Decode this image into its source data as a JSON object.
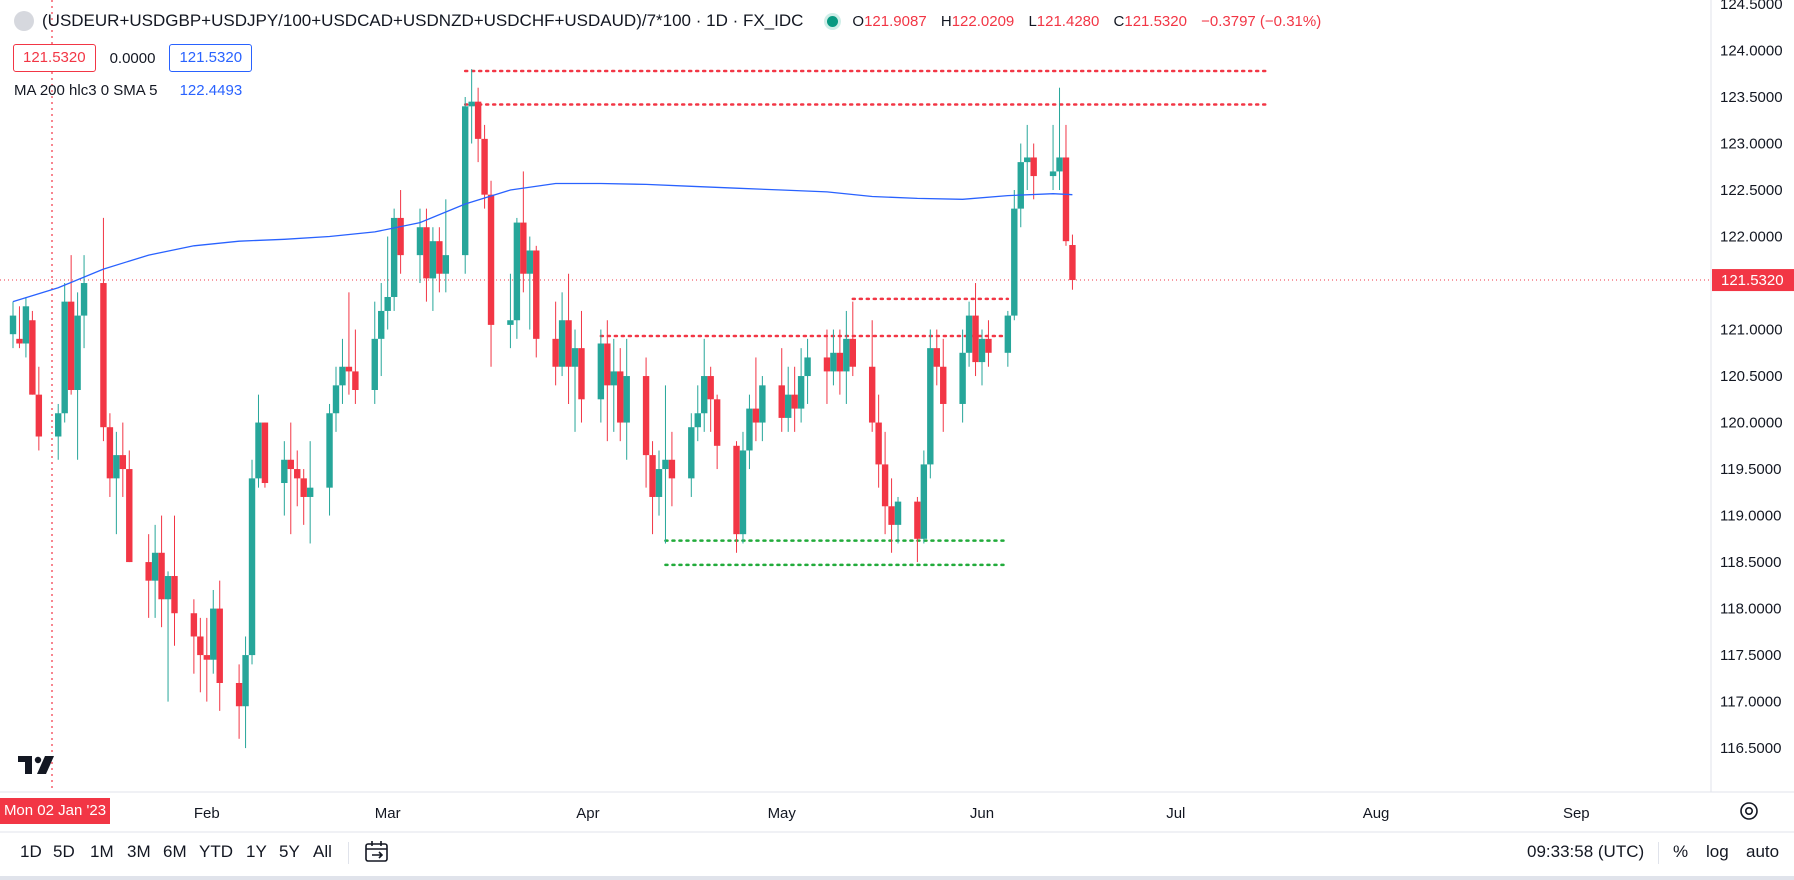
{
  "header": {
    "symbol_title": "(USDEUR+USDGBP+USDJPY/100+USDCAD+USDNZD+USDCHF+USDAUD)/7*100 · 1D · FX_IDC",
    "ohlc": {
      "o_label": "O",
      "o_value": "121.9087",
      "h_label": "H",
      "h_value": "122.0209",
      "l_label": "L",
      "l_value": "121.4280",
      "c_label": "C",
      "c_value": "121.5320",
      "change": "−0.3797 (−0.31%)"
    },
    "sell_price": "121.5320",
    "spread": "0.0000",
    "buy_price": "121.5320",
    "indicator_label": "MA 200 hlc3 0 SMA 5",
    "indicator_value": "122.4493"
  },
  "colors": {
    "up": "#26a69a",
    "down": "#f23645",
    "ma_line": "#2962ff",
    "support_lines": "#22ab3b",
    "resistance_lines": "#f23645"
  },
  "icons": [
    "symbol-logo-icon",
    "market-status-icon",
    "tradingview-logo-icon",
    "settings-icon",
    "date-range-icon"
  ],
  "time_axis": {
    "cursor_label": "Mon 02 Jan '23",
    "months": [
      "Feb",
      "Mar",
      "Apr",
      "May",
      "Jun",
      "Jul",
      "Aug",
      "Sep"
    ]
  },
  "price_axis": {
    "ticks": [
      "124.5000",
      "124.0000",
      "123.5000",
      "123.0000",
      "122.5000",
      "122.0000",
      "121.5000",
      "121.0000",
      "120.5000",
      "120.0000",
      "119.5000",
      "119.0000",
      "118.5000",
      "118.0000",
      "117.5000",
      "117.0000",
      "116.5000"
    ],
    "last_price_label": "121.5320"
  },
  "toolbar": {
    "timeframes": [
      "1D",
      "5D",
      "1M",
      "3M",
      "6M",
      "YTD",
      "1Y",
      "5Y",
      "All"
    ],
    "clock": "09:33:58 (UTC)",
    "options": [
      "%",
      "log",
      "auto"
    ]
  },
  "chart_data": {
    "type": "candlestick",
    "interval": "1D",
    "x_range": [
      "2023-01-02",
      "2023-09-15"
    ],
    "ylim": [
      116.2,
      124.5
    ],
    "grid": false,
    "last_price": 121.532,
    "candles": [
      {
        "d": "2023-01-02",
        "o": 120.95,
        "h": 121.3,
        "l": 120.8,
        "c": 121.15
      },
      {
        "d": "2023-01-03",
        "o": 120.9,
        "h": 121.25,
        "l": 120.8,
        "c": 120.85
      },
      {
        "d": "2023-01-04",
        "o": 120.85,
        "h": 121.35,
        "l": 120.7,
        "c": 121.25
      },
      {
        "d": "2023-01-05",
        "o": 121.1,
        "h": 121.2,
        "l": 120.3,
        "c": 120.3
      },
      {
        "d": "2023-01-06",
        "o": 120.3,
        "h": 120.6,
        "l": 119.7,
        "c": 119.85
      },
      {
        "d": "2023-01-09",
        "o": 119.85,
        "h": 120.2,
        "l": 119.6,
        "c": 120.1
      },
      {
        "d": "2023-01-10",
        "o": 120.1,
        "h": 121.5,
        "l": 120.0,
        "c": 121.3
      },
      {
        "d": "2023-01-11",
        "o": 121.3,
        "h": 121.8,
        "l": 120.3,
        "c": 120.35
      },
      {
        "d": "2023-01-12",
        "o": 120.35,
        "h": 121.4,
        "l": 119.6,
        "c": 121.15
      },
      {
        "d": "2023-01-13",
        "o": 121.15,
        "h": 121.8,
        "l": 120.8,
        "c": 121.5
      },
      {
        "d": "2023-01-16",
        "o": 121.5,
        "h": 122.2,
        "l": 119.8,
        "c": 119.95
      },
      {
        "d": "2023-01-17",
        "o": 119.95,
        "h": 120.1,
        "l": 119.2,
        "c": 119.4
      },
      {
        "d": "2023-01-18",
        "o": 119.4,
        "h": 119.9,
        "l": 118.8,
        "c": 119.65
      },
      {
        "d": "2023-01-19",
        "o": 119.65,
        "h": 120.0,
        "l": 119.2,
        "c": 119.5
      },
      {
        "d": "2023-01-20",
        "o": 119.5,
        "h": 119.7,
        "l": 118.5,
        "c": 118.5
      },
      {
        "d": "2023-01-23",
        "o": 118.5,
        "h": 118.8,
        "l": 117.9,
        "c": 118.3
      },
      {
        "d": "2023-01-24",
        "o": 118.3,
        "h": 118.9,
        "l": 117.9,
        "c": 118.6
      },
      {
        "d": "2023-01-25",
        "o": 118.6,
        "h": 119.0,
        "l": 117.8,
        "c": 118.1
      },
      {
        "d": "2023-01-26",
        "o": 118.1,
        "h": 118.4,
        "l": 117.0,
        "c": 118.35
      },
      {
        "d": "2023-01-27",
        "o": 118.35,
        "h": 119.0,
        "l": 117.6,
        "c": 117.95
      },
      {
        "d": "2023-01-30",
        "o": 117.95,
        "h": 118.1,
        "l": 117.3,
        "c": 117.7
      },
      {
        "d": "2023-01-31",
        "o": 117.7,
        "h": 117.9,
        "l": 117.1,
        "c": 117.5
      },
      {
        "d": "2023-02-01",
        "o": 117.5,
        "h": 117.9,
        "l": 117.0,
        "c": 117.45
      },
      {
        "d": "2023-02-02",
        "o": 117.45,
        "h": 118.2,
        "l": 117.3,
        "c": 118.0
      },
      {
        "d": "2023-02-03",
        "o": 118.0,
        "h": 118.3,
        "l": 116.9,
        "c": 117.2
      },
      {
        "d": "2023-02-06",
        "o": 117.2,
        "h": 117.4,
        "l": 116.6,
        "c": 116.95
      },
      {
        "d": "2023-02-07",
        "o": 116.95,
        "h": 117.7,
        "l": 116.5,
        "c": 117.5
      },
      {
        "d": "2023-02-08",
        "o": 117.5,
        "h": 119.6,
        "l": 117.4,
        "c": 119.4
      },
      {
        "d": "2023-02-09",
        "o": 119.4,
        "h": 120.3,
        "l": 119.3,
        "c": 120.0
      },
      {
        "d": "2023-02-10",
        "o": 120.0,
        "h": 120.0,
        "l": 119.3,
        "c": 119.35
      },
      {
        "d": "2023-02-13",
        "o": 119.35,
        "h": 119.8,
        "l": 119.0,
        "c": 119.6
      },
      {
        "d": "2023-02-14",
        "o": 119.6,
        "h": 120.0,
        "l": 118.8,
        "c": 119.5
      },
      {
        "d": "2023-02-15",
        "o": 119.5,
        "h": 119.7,
        "l": 119.1,
        "c": 119.4
      },
      {
        "d": "2023-02-16",
        "o": 119.4,
        "h": 119.5,
        "l": 118.9,
        "c": 119.2
      },
      {
        "d": "2023-02-17",
        "o": 119.2,
        "h": 119.8,
        "l": 118.7,
        "c": 119.3
      },
      {
        "d": "2023-02-20",
        "o": 119.3,
        "h": 120.2,
        "l": 119.0,
        "c": 120.1
      },
      {
        "d": "2023-02-21",
        "o": 120.1,
        "h": 120.6,
        "l": 119.9,
        "c": 120.4
      },
      {
        "d": "2023-02-22",
        "o": 120.4,
        "h": 120.9,
        "l": 120.2,
        "c": 120.6
      },
      {
        "d": "2023-02-23",
        "o": 120.6,
        "h": 121.4,
        "l": 120.3,
        "c": 120.55
      },
      {
        "d": "2023-02-24",
        "o": 120.55,
        "h": 121.0,
        "l": 120.2,
        "c": 120.35
      },
      {
        "d": "2023-02-27",
        "o": 120.35,
        "h": 121.3,
        "l": 120.2,
        "c": 120.9
      },
      {
        "d": "2023-02-28",
        "o": 120.9,
        "h": 121.5,
        "l": 120.5,
        "c": 121.2
      },
      {
        "d": "2023-03-01",
        "o": 121.2,
        "h": 122.0,
        "l": 121.0,
        "c": 121.35
      },
      {
        "d": "2023-03-02",
        "o": 121.35,
        "h": 122.3,
        "l": 121.2,
        "c": 122.2
      },
      {
        "d": "2023-03-03",
        "o": 122.2,
        "h": 122.5,
        "l": 121.6,
        "c": 121.8
      },
      {
        "d": "2023-03-06",
        "o": 121.8,
        "h": 122.3,
        "l": 121.5,
        "c": 122.1
      },
      {
        "d": "2023-03-07",
        "o": 122.1,
        "h": 122.3,
        "l": 121.3,
        "c": 121.55
      },
      {
        "d": "2023-03-08",
        "o": 121.55,
        "h": 122.1,
        "l": 121.2,
        "c": 121.95
      },
      {
        "d": "2023-03-09",
        "o": 121.95,
        "h": 122.1,
        "l": 121.4,
        "c": 121.6
      },
      {
        "d": "2023-03-10",
        "o": 121.6,
        "h": 122.4,
        "l": 121.4,
        "c": 121.8
      },
      {
        "d": "2023-03-13",
        "o": 121.8,
        "h": 123.5,
        "l": 121.6,
        "c": 123.4
      },
      {
        "d": "2023-03-14",
        "o": 123.4,
        "h": 123.8,
        "l": 123.0,
        "c": 123.45
      },
      {
        "d": "2023-03-15",
        "o": 123.45,
        "h": 123.6,
        "l": 122.8,
        "c": 123.05
      },
      {
        "d": "2023-03-16",
        "o": 123.05,
        "h": 123.2,
        "l": 122.3,
        "c": 122.45
      },
      {
        "d": "2023-03-17",
        "o": 122.45,
        "h": 122.6,
        "l": 120.6,
        "c": 121.05
      },
      {
        "d": "2023-03-20",
        "o": 121.05,
        "h": 121.6,
        "l": 120.8,
        "c": 121.1
      },
      {
        "d": "2023-03-21",
        "o": 121.1,
        "h": 122.2,
        "l": 120.9,
        "c": 122.15
      },
      {
        "d": "2023-03-22",
        "o": 122.15,
        "h": 122.7,
        "l": 121.4,
        "c": 121.6
      },
      {
        "d": "2023-03-23",
        "o": 121.6,
        "h": 122.0,
        "l": 121.0,
        "c": 121.85
      },
      {
        "d": "2023-03-24",
        "o": 121.85,
        "h": 121.9,
        "l": 120.7,
        "c": 120.9
      },
      {
        "d": "2023-03-27",
        "o": 120.9,
        "h": 121.3,
        "l": 120.4,
        "c": 120.6
      },
      {
        "d": "2023-03-28",
        "o": 120.6,
        "h": 121.4,
        "l": 120.5,
        "c": 121.1
      },
      {
        "d": "2023-03-29",
        "o": 121.1,
        "h": 121.6,
        "l": 120.2,
        "c": 120.6
      },
      {
        "d": "2023-03-30",
        "o": 120.6,
        "h": 121.0,
        "l": 119.9,
        "c": 120.8
      },
      {
        "d": "2023-03-31",
        "o": 120.8,
        "h": 121.2,
        "l": 120.0,
        "c": 120.25
      },
      {
        "d": "2023-04-03",
        "o": 120.25,
        "h": 121.0,
        "l": 120.0,
        "c": 120.85
      },
      {
        "d": "2023-04-04",
        "o": 120.85,
        "h": 121.1,
        "l": 119.8,
        "c": 120.4
      },
      {
        "d": "2023-04-05",
        "o": 120.4,
        "h": 120.9,
        "l": 119.9,
        "c": 120.55
      },
      {
        "d": "2023-04-06",
        "o": 120.55,
        "h": 120.8,
        "l": 119.8,
        "c": 120.0
      },
      {
        "d": "2023-04-07",
        "o": 120.0,
        "h": 120.9,
        "l": 119.6,
        "c": 120.5
      },
      {
        "d": "2023-04-10",
        "o": 120.5,
        "h": 120.7,
        "l": 119.3,
        "c": 119.65
      },
      {
        "d": "2023-04-11",
        "o": 119.65,
        "h": 119.8,
        "l": 118.8,
        "c": 119.2
      },
      {
        "d": "2023-04-12",
        "o": 119.2,
        "h": 119.7,
        "l": 119.0,
        "c": 119.5
      },
      {
        "d": "2023-04-13",
        "o": 119.5,
        "h": 120.4,
        "l": 118.7,
        "c": 119.6
      },
      {
        "d": "2023-04-14",
        "o": 119.6,
        "h": 119.9,
        "l": 119.1,
        "c": 119.4
      },
      {
        "d": "2023-04-17",
        "o": 119.4,
        "h": 120.1,
        "l": 119.2,
        "c": 119.95
      },
      {
        "d": "2023-04-18",
        "o": 119.95,
        "h": 120.4,
        "l": 119.8,
        "c": 120.1
      },
      {
        "d": "2023-04-19",
        "o": 120.1,
        "h": 120.9,
        "l": 119.9,
        "c": 120.5
      },
      {
        "d": "2023-04-20",
        "o": 120.5,
        "h": 120.6,
        "l": 119.9,
        "c": 120.25
      },
      {
        "d": "2023-04-21",
        "o": 120.25,
        "h": 120.3,
        "l": 119.5,
        "c": 119.75
      },
      {
        "d": "2023-04-24",
        "o": 119.75,
        "h": 119.8,
        "l": 118.6,
        "c": 118.8
      },
      {
        "d": "2023-04-25",
        "o": 118.8,
        "h": 119.9,
        "l": 118.7,
        "c": 119.7
      },
      {
        "d": "2023-04-26",
        "o": 119.7,
        "h": 120.3,
        "l": 119.5,
        "c": 120.15
      },
      {
        "d": "2023-04-27",
        "o": 120.15,
        "h": 120.7,
        "l": 119.8,
        "c": 120.0
      },
      {
        "d": "2023-04-28",
        "o": 120.0,
        "h": 120.5,
        "l": 119.8,
        "c": 120.4
      },
      {
        "d": "2023-05-01",
        "o": 120.4,
        "h": 120.8,
        "l": 119.9,
        "c": 120.05
      },
      {
        "d": "2023-05-02",
        "o": 120.05,
        "h": 120.6,
        "l": 119.9,
        "c": 120.3
      },
      {
        "d": "2023-05-03",
        "o": 120.3,
        "h": 120.6,
        "l": 119.9,
        "c": 120.15
      },
      {
        "d": "2023-05-04",
        "o": 120.15,
        "h": 120.8,
        "l": 120.0,
        "c": 120.5
      },
      {
        "d": "2023-05-05",
        "o": 120.5,
        "h": 120.9,
        "l": 120.2,
        "c": 120.7
      },
      {
        "d": "2023-05-08",
        "o": 120.7,
        "h": 121.0,
        "l": 120.2,
        "c": 120.55
      },
      {
        "d": "2023-05-09",
        "o": 120.55,
        "h": 121.0,
        "l": 120.4,
        "c": 120.75
      },
      {
        "d": "2023-05-10",
        "o": 120.75,
        "h": 121.0,
        "l": 120.3,
        "c": 120.55
      },
      {
        "d": "2023-05-11",
        "o": 120.55,
        "h": 121.2,
        "l": 120.2,
        "c": 120.9
      },
      {
        "d": "2023-05-12",
        "o": 120.9,
        "h": 121.3,
        "l": 120.5,
        "c": 120.6
      },
      {
        "d": "2023-05-15",
        "o": 120.6,
        "h": 121.1,
        "l": 119.9,
        "c": 120.0
      },
      {
        "d": "2023-05-16",
        "o": 120.0,
        "h": 120.3,
        "l": 119.3,
        "c": 119.55
      },
      {
        "d": "2023-05-17",
        "o": 119.55,
        "h": 119.9,
        "l": 118.8,
        "c": 119.1
      },
      {
        "d": "2023-05-18",
        "o": 119.1,
        "h": 119.4,
        "l": 118.6,
        "c": 118.9
      },
      {
        "d": "2023-05-19",
        "o": 118.9,
        "h": 119.2,
        "l": 118.7,
        "c": 119.15
      },
      {
        "d": "2023-05-22",
        "o": 119.15,
        "h": 119.2,
        "l": 118.5,
        "c": 118.75
      },
      {
        "d": "2023-05-23",
        "o": 118.75,
        "h": 119.7,
        "l": 118.7,
        "c": 119.55
      },
      {
        "d": "2023-05-24",
        "o": 119.55,
        "h": 121.0,
        "l": 119.4,
        "c": 120.8
      },
      {
        "d": "2023-05-25",
        "o": 120.8,
        "h": 121.0,
        "l": 120.4,
        "c": 120.6
      },
      {
        "d": "2023-05-26",
        "o": 120.6,
        "h": 120.9,
        "l": 119.9,
        "c": 120.2
      },
      {
        "d": "2023-05-29",
        "o": 120.2,
        "h": 121.0,
        "l": 120.0,
        "c": 120.75
      },
      {
        "d": "2023-05-30",
        "o": 120.75,
        "h": 121.3,
        "l": 120.6,
        "c": 121.15
      },
      {
        "d": "2023-05-31",
        "o": 121.15,
        "h": 121.5,
        "l": 120.5,
        "c": 120.65
      },
      {
        "d": "2023-06-01",
        "o": 120.65,
        "h": 121.0,
        "l": 120.4,
        "c": 120.9
      },
      {
        "d": "2023-06-02",
        "o": 120.9,
        "h": 121.1,
        "l": 120.6,
        "c": 120.75
      },
      {
        "d": "2023-06-05",
        "o": 120.75,
        "h": 121.2,
        "l": 120.6,
        "c": 121.15
      },
      {
        "d": "2023-06-06",
        "o": 121.15,
        "h": 122.5,
        "l": 121.1,
        "c": 122.3
      },
      {
        "d": "2023-06-07",
        "o": 122.3,
        "h": 123.0,
        "l": 122.1,
        "c": 122.8
      },
      {
        "d": "2023-06-08",
        "o": 122.8,
        "h": 123.2,
        "l": 122.5,
        "c": 122.85
      },
      {
        "d": "2023-06-09",
        "o": 122.85,
        "h": 123.0,
        "l": 122.4,
        "c": 122.65
      },
      {
        "d": "2023-06-12",
        "o": 122.65,
        "h": 123.2,
        "l": 122.5,
        "c": 122.7
      },
      {
        "d": "2023-06-13",
        "o": 122.7,
        "h": 123.6,
        "l": 122.5,
        "c": 122.85
      },
      {
        "d": "2023-06-14",
        "o": 122.85,
        "h": 123.2,
        "l": 121.9,
        "c": 121.95
      },
      {
        "d": "2023-06-15",
        "o": 121.9087,
        "h": 122.0209,
        "l": 121.428,
        "c": 121.532
      }
    ],
    "ma200": {
      "name": "MA 200 hlc3 0 SMA 5",
      "points": [
        {
          "d": "2023-01-02",
          "v": 121.3
        },
        {
          "d": "2023-01-09",
          "v": 121.45
        },
        {
          "d": "2023-01-16",
          "v": 121.65
        },
        {
          "d": "2023-01-23",
          "v": 121.8
        },
        {
          "d": "2023-01-30",
          "v": 121.9
        },
        {
          "d": "2023-02-06",
          "v": 121.95
        },
        {
          "d": "2023-02-13",
          "v": 121.97
        },
        {
          "d": "2023-02-20",
          "v": 122.0
        },
        {
          "d": "2023-02-27",
          "v": 122.05
        },
        {
          "d": "2023-03-06",
          "v": 122.15
        },
        {
          "d": "2023-03-13",
          "v": 122.35
        },
        {
          "d": "2023-03-20",
          "v": 122.5
        },
        {
          "d": "2023-03-27",
          "v": 122.57
        },
        {
          "d": "2023-04-03",
          "v": 122.57
        },
        {
          "d": "2023-04-10",
          "v": 122.56
        },
        {
          "d": "2023-04-17",
          "v": 122.54
        },
        {
          "d": "2023-04-24",
          "v": 122.52
        },
        {
          "d": "2023-05-01",
          "v": 122.5
        },
        {
          "d": "2023-05-08",
          "v": 122.48
        },
        {
          "d": "2023-05-15",
          "v": 122.43
        },
        {
          "d": "2023-05-22",
          "v": 122.41
        },
        {
          "d": "2023-05-29",
          "v": 122.4
        },
        {
          "d": "2023-06-05",
          "v": 122.44
        },
        {
          "d": "2023-06-12",
          "v": 122.46
        },
        {
          "d": "2023-06-15",
          "v": 122.45
        }
      ]
    },
    "levels": [
      {
        "kind": "resistance",
        "price": 123.78,
        "from": "2023-03-13",
        "to": "2023-07-15"
      },
      {
        "kind": "resistance",
        "price": 123.42,
        "from": "2023-03-13",
        "to": "2023-07-15"
      },
      {
        "kind": "resistance",
        "price": 121.33,
        "from": "2023-05-12",
        "to": "2023-06-05"
      },
      {
        "kind": "resistance",
        "price": 120.93,
        "from": "2023-04-03",
        "to": "2023-06-05"
      },
      {
        "kind": "support",
        "price": 118.73,
        "from": "2023-04-13",
        "to": "2023-06-05"
      },
      {
        "kind": "support",
        "price": 118.47,
        "from": "2023-04-13",
        "to": "2023-06-05"
      }
    ],
    "crosshair_date": "2023-01-02"
  }
}
